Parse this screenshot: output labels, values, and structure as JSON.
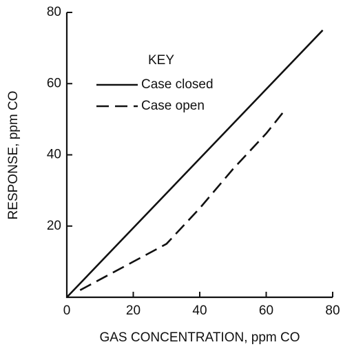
{
  "chart_data": {
    "type": "line",
    "xlabel": "GAS CONCENTRATION, ppm CO",
    "ylabel": "RESPONSE, ppm CO",
    "legend_title": "KEY",
    "xlim": [
      0,
      80
    ],
    "xticks": [
      0,
      20,
      40,
      60,
      80
    ],
    "ylim": [
      0,
      80
    ],
    "yticks": [
      20,
      40,
      60,
      80
    ],
    "series": [
      {
        "name": "Case closed",
        "color": "#111111",
        "style": "solid",
        "x": [
          0,
          77
        ],
        "values": [
          0,
          75
        ]
      },
      {
        "name": "Case open",
        "color": "#111111",
        "style": "dashed",
        "x": [
          4,
          20,
          30,
          40,
          50,
          60,
          66
        ],
        "values": [
          2,
          10,
          15,
          25,
          36,
          46,
          53
        ]
      }
    ]
  }
}
